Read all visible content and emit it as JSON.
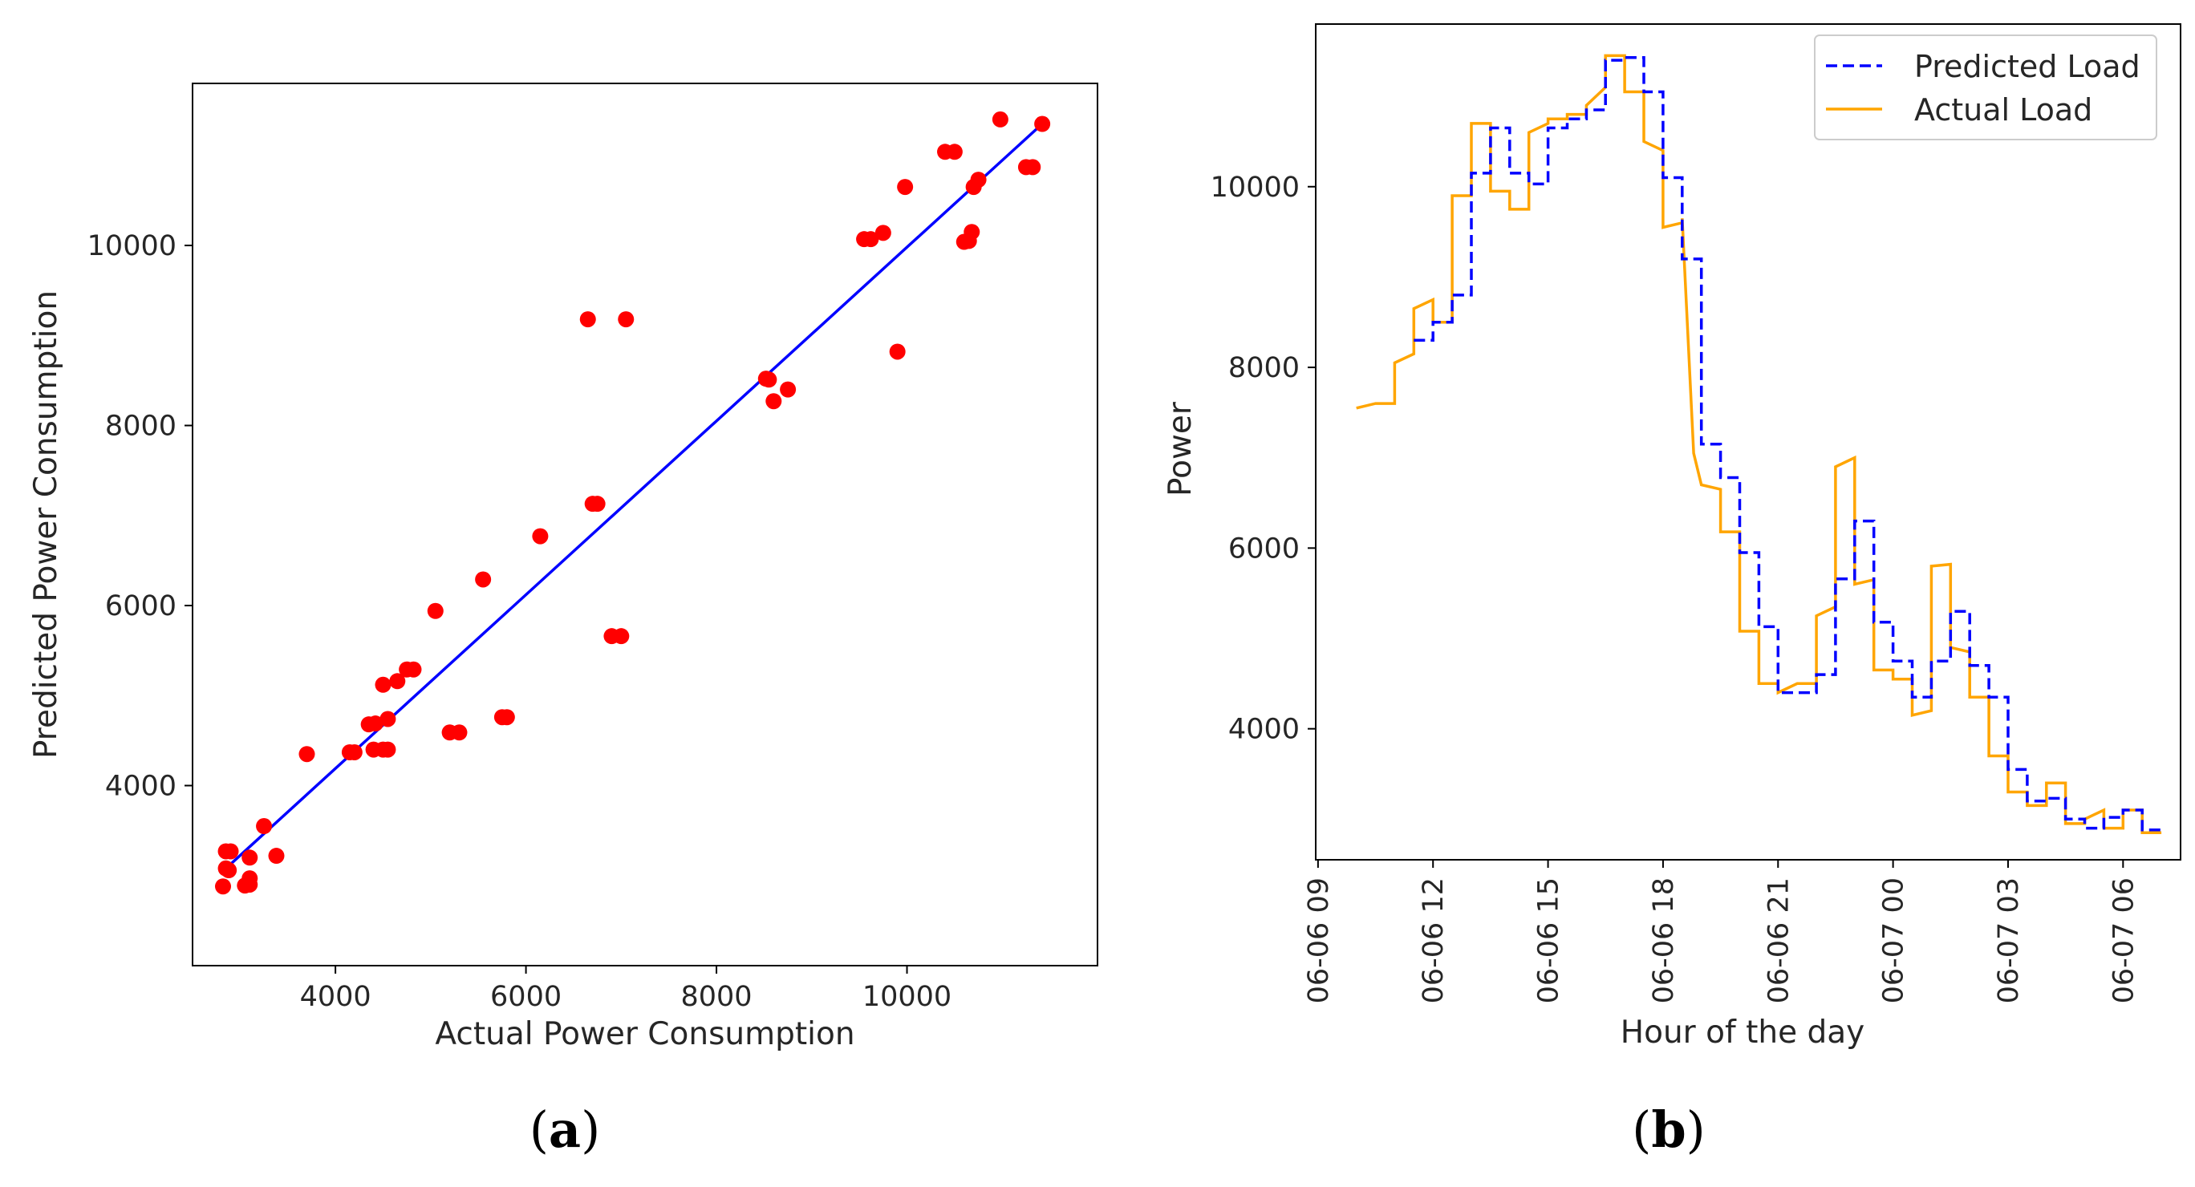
{
  "chart_data": [
    {
      "type": "scatter",
      "panel_label": "a",
      "title": "",
      "xlabel": "Actual Power Consumption",
      "ylabel": "Predicted Power Consumption",
      "xlim": [
        2500,
        12000
      ],
      "ylim": [
        2000,
        11800
      ],
      "xticks": [
        4000,
        6000,
        8000,
        10000
      ],
      "yticks": [
        4000,
        6000,
        8000,
        10000
      ],
      "point_color": "#ff0000",
      "fit_line_color": "#0000ff",
      "fit_line": {
        "x": [
          2850,
          11450
        ],
        "y": [
          3080,
          11380
        ]
      },
      "points": [
        [
          2820,
          2880
        ],
        [
          2850,
          3080
        ],
        [
          2880,
          3060
        ],
        [
          2850,
          3270
        ],
        [
          2900,
          3270
        ],
        [
          3050,
          2890
        ],
        [
          3100,
          2900
        ],
        [
          3100,
          2970
        ],
        [
          3100,
          3200
        ],
        [
          3250,
          3550
        ],
        [
          3380,
          3220
        ],
        [
          3700,
          4350
        ],
        [
          4150,
          4370
        ],
        [
          4200,
          4370
        ],
        [
          4350,
          4680
        ],
        [
          4400,
          4400
        ],
        [
          4420,
          4690
        ],
        [
          4500,
          5120
        ],
        [
          4500,
          4400
        ],
        [
          4550,
          4400
        ],
        [
          4550,
          4740
        ],
        [
          4650,
          5160
        ],
        [
          4750,
          5290
        ],
        [
          4820,
          5290
        ],
        [
          5050,
          5940
        ],
        [
          5200,
          4590
        ],
        [
          5300,
          4590
        ],
        [
          5550,
          6290
        ],
        [
          5750,
          4760
        ],
        [
          5800,
          4760
        ],
        [
          6150,
          6770
        ],
        [
          6650,
          9180
        ],
        [
          6700,
          7130
        ],
        [
          6750,
          7130
        ],
        [
          6900,
          5660
        ],
        [
          7000,
          5660
        ],
        [
          7050,
          9180
        ],
        [
          8520,
          8520
        ],
        [
          8550,
          8510
        ],
        [
          8600,
          8270
        ],
        [
          8750,
          8400
        ],
        [
          9550,
          10070
        ],
        [
          9620,
          10070
        ],
        [
          9750,
          10140
        ],
        [
          9900,
          8820
        ],
        [
          9980,
          10650
        ],
        [
          10400,
          11040
        ],
        [
          10500,
          11040
        ],
        [
          10600,
          10040
        ],
        [
          10650,
          10050
        ],
        [
          10680,
          10150
        ],
        [
          10700,
          10650
        ],
        [
          10750,
          10730
        ],
        [
          10980,
          11400
        ],
        [
          11250,
          10870
        ],
        [
          11320,
          10870
        ],
        [
          11420,
          11350
        ]
      ]
    },
    {
      "type": "line",
      "panel_label": "b",
      "title": "",
      "xlabel": "Hour of the day",
      "ylabel": "Power",
      "x_unit": "hours since 06-06 09:00",
      "xlim": [
        -0.06,
        22.5
      ],
      "ylim": [
        2550,
        11800
      ],
      "xtick_labels": [
        "06-06 09",
        "06-06 12",
        "06-06 15",
        "06-06 18",
        "06-06 21",
        "06-07 00",
        "06-07 03",
        "06-07 06"
      ],
      "xtick_values": [
        0,
        3,
        6,
        9,
        12,
        15,
        18,
        21
      ],
      "yticks": [
        4000,
        6000,
        8000,
        10000
      ],
      "legend_position": "upper right",
      "series": [
        {
          "name": "Predicted Load",
          "color": "#0000ff",
          "dash": "dashed",
          "x": [
            2.5,
            3.0,
            3.0,
            3.5,
            3.5,
            4.0,
            4.0,
            4.5,
            4.5,
            5.0,
            5.0,
            5.5,
            5.5,
            6.0,
            6.0,
            6.5,
            6.5,
            7.0,
            7.0,
            7.5,
            7.5,
            8.0,
            8.0,
            8.5,
            8.5,
            9.0,
            9.0,
            9.5,
            9.5,
            10.0,
            10.0,
            10.5,
            10.5,
            11.0,
            11.0,
            11.5,
            11.5,
            12.0,
            12.0,
            12.5,
            12.5,
            13.0,
            13.0,
            13.5,
            13.5,
            14.0,
            14.0,
            14.5,
            14.5,
            15.0,
            15.0,
            15.5,
            15.5,
            16.0,
            16.0,
            16.5,
            16.5,
            17.0,
            17.0,
            17.5,
            17.5,
            18.0,
            18.0,
            18.5,
            18.5,
            19.0,
            19.0,
            19.5,
            19.5,
            20.0,
            20.0,
            20.5,
            20.5,
            21.0,
            21.0,
            21.5,
            21.5,
            22.0,
            22.0
          ],
          "y": [
            8300,
            8300,
            8500,
            8500,
            8800,
            8800,
            10150,
            10150,
            10650,
            10650,
            10150,
            10150,
            10030,
            10030,
            10650,
            10650,
            10750,
            10750,
            10850,
            10850,
            11400,
            11400,
            11430,
            11430,
            11050,
            11050,
            10100,
            10100,
            9200,
            9200,
            7150,
            7150,
            6780,
            6780,
            5950,
            5950,
            5130,
            5130,
            4400,
            4400,
            4400,
            4400,
            4600,
            4600,
            5660,
            5660,
            6300,
            6300,
            5180,
            5180,
            4750,
            4750,
            4350,
            4350,
            4750,
            4750,
            5300,
            5300,
            4700,
            4700,
            4350,
            4350,
            3550,
            3550,
            3200,
            3200,
            3230,
            3230,
            3000,
            3000,
            2900,
            2900,
            3020,
            3020,
            3100,
            3100,
            2880,
            2880,
            2850
          ]
        },
        {
          "name": "Actual Load",
          "color": "#ffa500",
          "dash": "solid",
          "x": [
            1.0,
            1.5,
            1.5,
            2.0,
            2.0,
            2.5,
            2.5,
            3.0,
            3.0,
            3.5,
            3.5,
            4.0,
            4.0,
            4.5,
            4.5,
            5.0,
            5.0,
            5.5,
            5.5,
            6.0,
            6.0,
            6.5,
            6.5,
            7.0,
            7.0,
            7.5,
            7.5,
            8.0,
            8.0,
            8.5,
            8.5,
            9.0,
            9.0,
            9.5,
            9.5,
            9.8,
            10.0,
            10.5,
            10.5,
            11.0,
            11.0,
            11.5,
            11.5,
            12.0,
            12.0,
            12.5,
            12.5,
            13.0,
            13.0,
            13.5,
            13.5,
            14.0,
            14.0,
            14.5,
            14.5,
            15.0,
            15.0,
            15.5,
            15.5,
            16.0,
            16.0,
            16.5,
            16.5,
            17.0,
            17.0,
            17.5,
            17.5,
            18.0,
            18.0,
            18.5,
            18.5,
            19.0,
            19.0,
            19.5,
            19.5,
            20.0,
            20.0,
            20.5,
            20.5,
            21.0,
            21.0,
            21.5,
            21.5,
            22.0,
            22.0
          ],
          "y": [
            7550,
            7600,
            7600,
            7600,
            8050,
            8150,
            8650,
            8750,
            8500,
            8500,
            9900,
            9900,
            10700,
            10700,
            9950,
            9950,
            9750,
            9750,
            10600,
            10700,
            10750,
            10750,
            10800,
            10800,
            10900,
            11100,
            11450,
            11450,
            11050,
            11050,
            10500,
            10400,
            9550,
            9600,
            9650,
            7050,
            6700,
            6650,
            6180,
            6180,
            5080,
            5080,
            4500,
            4500,
            4400,
            4500,
            4500,
            4500,
            5250,
            5350,
            6900,
            7000,
            5600,
            5650,
            4650,
            4650,
            4550,
            4550,
            4150,
            4200,
            5800,
            5820,
            4900,
            4850,
            4350,
            4350,
            3700,
            3700,
            3300,
            3300,
            3150,
            3150,
            3400,
            3400,
            2950,
            2950,
            3000,
            3100,
            2900,
            2900,
            3100,
            3100,
            2850,
            2850,
            2850
          ]
        }
      ]
    }
  ],
  "captions": {
    "a": {
      "open": "(",
      "letter": "a",
      "close": ")"
    },
    "b": {
      "open": "(",
      "letter": "b",
      "close": ")"
    }
  }
}
